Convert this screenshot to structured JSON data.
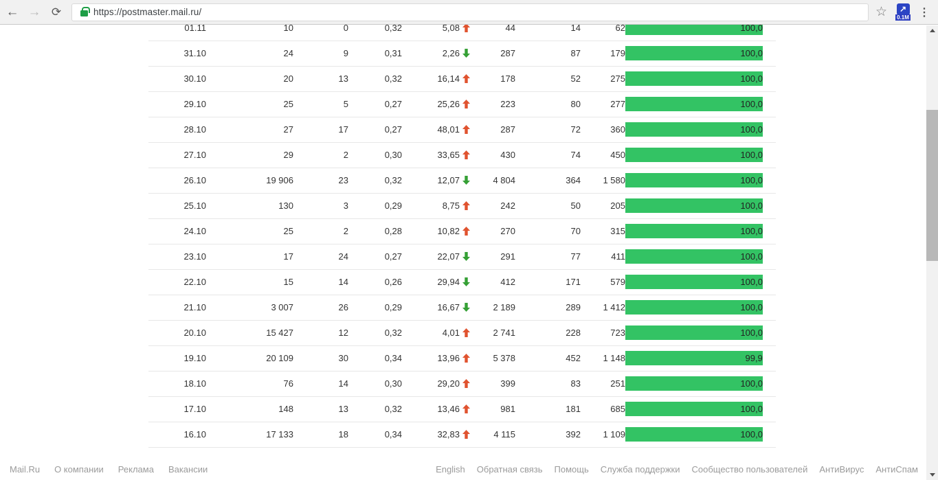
{
  "browser": {
    "url": "https://postmaster.mail.ru/",
    "extension_badge": "0.1M",
    "icons": {
      "back": "←",
      "forward": "→",
      "reload": "⟳",
      "star": "☆",
      "menu": "⋮",
      "ext_arrow": "↗"
    }
  },
  "colors": {
    "bar_green": "#33c364",
    "trend_up": "#e0532f",
    "trend_down": "#35a035"
  },
  "table": {
    "rows": [
      {
        "date": "01.11",
        "c1": "10",
        "c2": "0",
        "c3": "0,32",
        "c4": "5,08",
        "trend": "up",
        "c5": "44",
        "c6": "14",
        "c7": "62",
        "bar_label": "100,0",
        "bar_value": 100.0
      },
      {
        "date": "31.10",
        "c1": "24",
        "c2": "9",
        "c3": "0,31",
        "c4": "2,26",
        "trend": "down",
        "c5": "287",
        "c6": "87",
        "c7": "179",
        "bar_label": "100,0",
        "bar_value": 100.0
      },
      {
        "date": "30.10",
        "c1": "20",
        "c2": "13",
        "c3": "0,32",
        "c4": "16,14",
        "trend": "up",
        "c5": "178",
        "c6": "52",
        "c7": "275",
        "bar_label": "100,0",
        "bar_value": 100.0
      },
      {
        "date": "29.10",
        "c1": "25",
        "c2": "5",
        "c3": "0,27",
        "c4": "25,26",
        "trend": "up",
        "c5": "223",
        "c6": "80",
        "c7": "277",
        "bar_label": "100,0",
        "bar_value": 100.0
      },
      {
        "date": "28.10",
        "c1": "27",
        "c2": "17",
        "c3": "0,27",
        "c4": "48,01",
        "trend": "up",
        "c5": "287",
        "c6": "72",
        "c7": "360",
        "bar_label": "100,0",
        "bar_value": 100.0
      },
      {
        "date": "27.10",
        "c1": "29",
        "c2": "2",
        "c3": "0,30",
        "c4": "33,65",
        "trend": "up",
        "c5": "430",
        "c6": "74",
        "c7": "450",
        "bar_label": "100,0",
        "bar_value": 100.0
      },
      {
        "date": "26.10",
        "c1": "19 906",
        "c2": "23",
        "c3": "0,32",
        "c4": "12,07",
        "trend": "down",
        "c5": "4 804",
        "c6": "364",
        "c7": "1 580",
        "bar_label": "100,0",
        "bar_value": 100.0
      },
      {
        "date": "25.10",
        "c1": "130",
        "c2": "3",
        "c3": "0,29",
        "c4": "8,75",
        "trend": "up",
        "c5": "242",
        "c6": "50",
        "c7": "205",
        "bar_label": "100,0",
        "bar_value": 100.0
      },
      {
        "date": "24.10",
        "c1": "25",
        "c2": "2",
        "c3": "0,28",
        "c4": "10,82",
        "trend": "up",
        "c5": "270",
        "c6": "70",
        "c7": "315",
        "bar_label": "100,0",
        "bar_value": 100.0
      },
      {
        "date": "23.10",
        "c1": "17",
        "c2": "24",
        "c3": "0,27",
        "c4": "22,07",
        "trend": "down",
        "c5": "291",
        "c6": "77",
        "c7": "411",
        "bar_label": "100,0",
        "bar_value": 100.0
      },
      {
        "date": "22.10",
        "c1": "15",
        "c2": "14",
        "c3": "0,26",
        "c4": "29,94",
        "trend": "down",
        "c5": "412",
        "c6": "171",
        "c7": "579",
        "bar_label": "100,0",
        "bar_value": 100.0
      },
      {
        "date": "21.10",
        "c1": "3 007",
        "c2": "26",
        "c3": "0,29",
        "c4": "16,67",
        "trend": "down",
        "c5": "2 189",
        "c6": "289",
        "c7": "1 412",
        "bar_label": "100,0",
        "bar_value": 100.0
      },
      {
        "date": "20.10",
        "c1": "15 427",
        "c2": "12",
        "c3": "0,32",
        "c4": "4,01",
        "trend": "up",
        "c5": "2 741",
        "c6": "228",
        "c7": "723",
        "bar_label": "100,0",
        "bar_value": 100.0
      },
      {
        "date": "19.10",
        "c1": "20 109",
        "c2": "30",
        "c3": "0,34",
        "c4": "13,96",
        "trend": "up",
        "c5": "5 378",
        "c6": "452",
        "c7": "1 148",
        "bar_label": "99,9",
        "bar_value": 99.9
      },
      {
        "date": "18.10",
        "c1": "76",
        "c2": "14",
        "c3": "0,30",
        "c4": "29,20",
        "trend": "up",
        "c5": "399",
        "c6": "83",
        "c7": "251",
        "bar_label": "100,0",
        "bar_value": 100.0
      },
      {
        "date": "17.10",
        "c1": "148",
        "c2": "13",
        "c3": "0,32",
        "c4": "13,46",
        "trend": "up",
        "c5": "981",
        "c6": "181",
        "c7": "685",
        "bar_label": "100,0",
        "bar_value": 100.0
      },
      {
        "date": "16.10",
        "c1": "17 133",
        "c2": "18",
        "c3": "0,34",
        "c4": "32,83",
        "trend": "up",
        "c5": "4 115",
        "c6": "392",
        "c7": "1 109",
        "bar_label": "100,0",
        "bar_value": 100.0
      }
    ]
  },
  "footer": {
    "left_links": [
      "Mail.Ru",
      "О компании",
      "Реклама",
      "Вакансии"
    ],
    "right_links": [
      "English",
      "Обратная связь",
      "Помощь",
      "Служба поддержки",
      "Сообщество пользователей",
      "АнтиВирус",
      "АнтиСпам"
    ]
  }
}
